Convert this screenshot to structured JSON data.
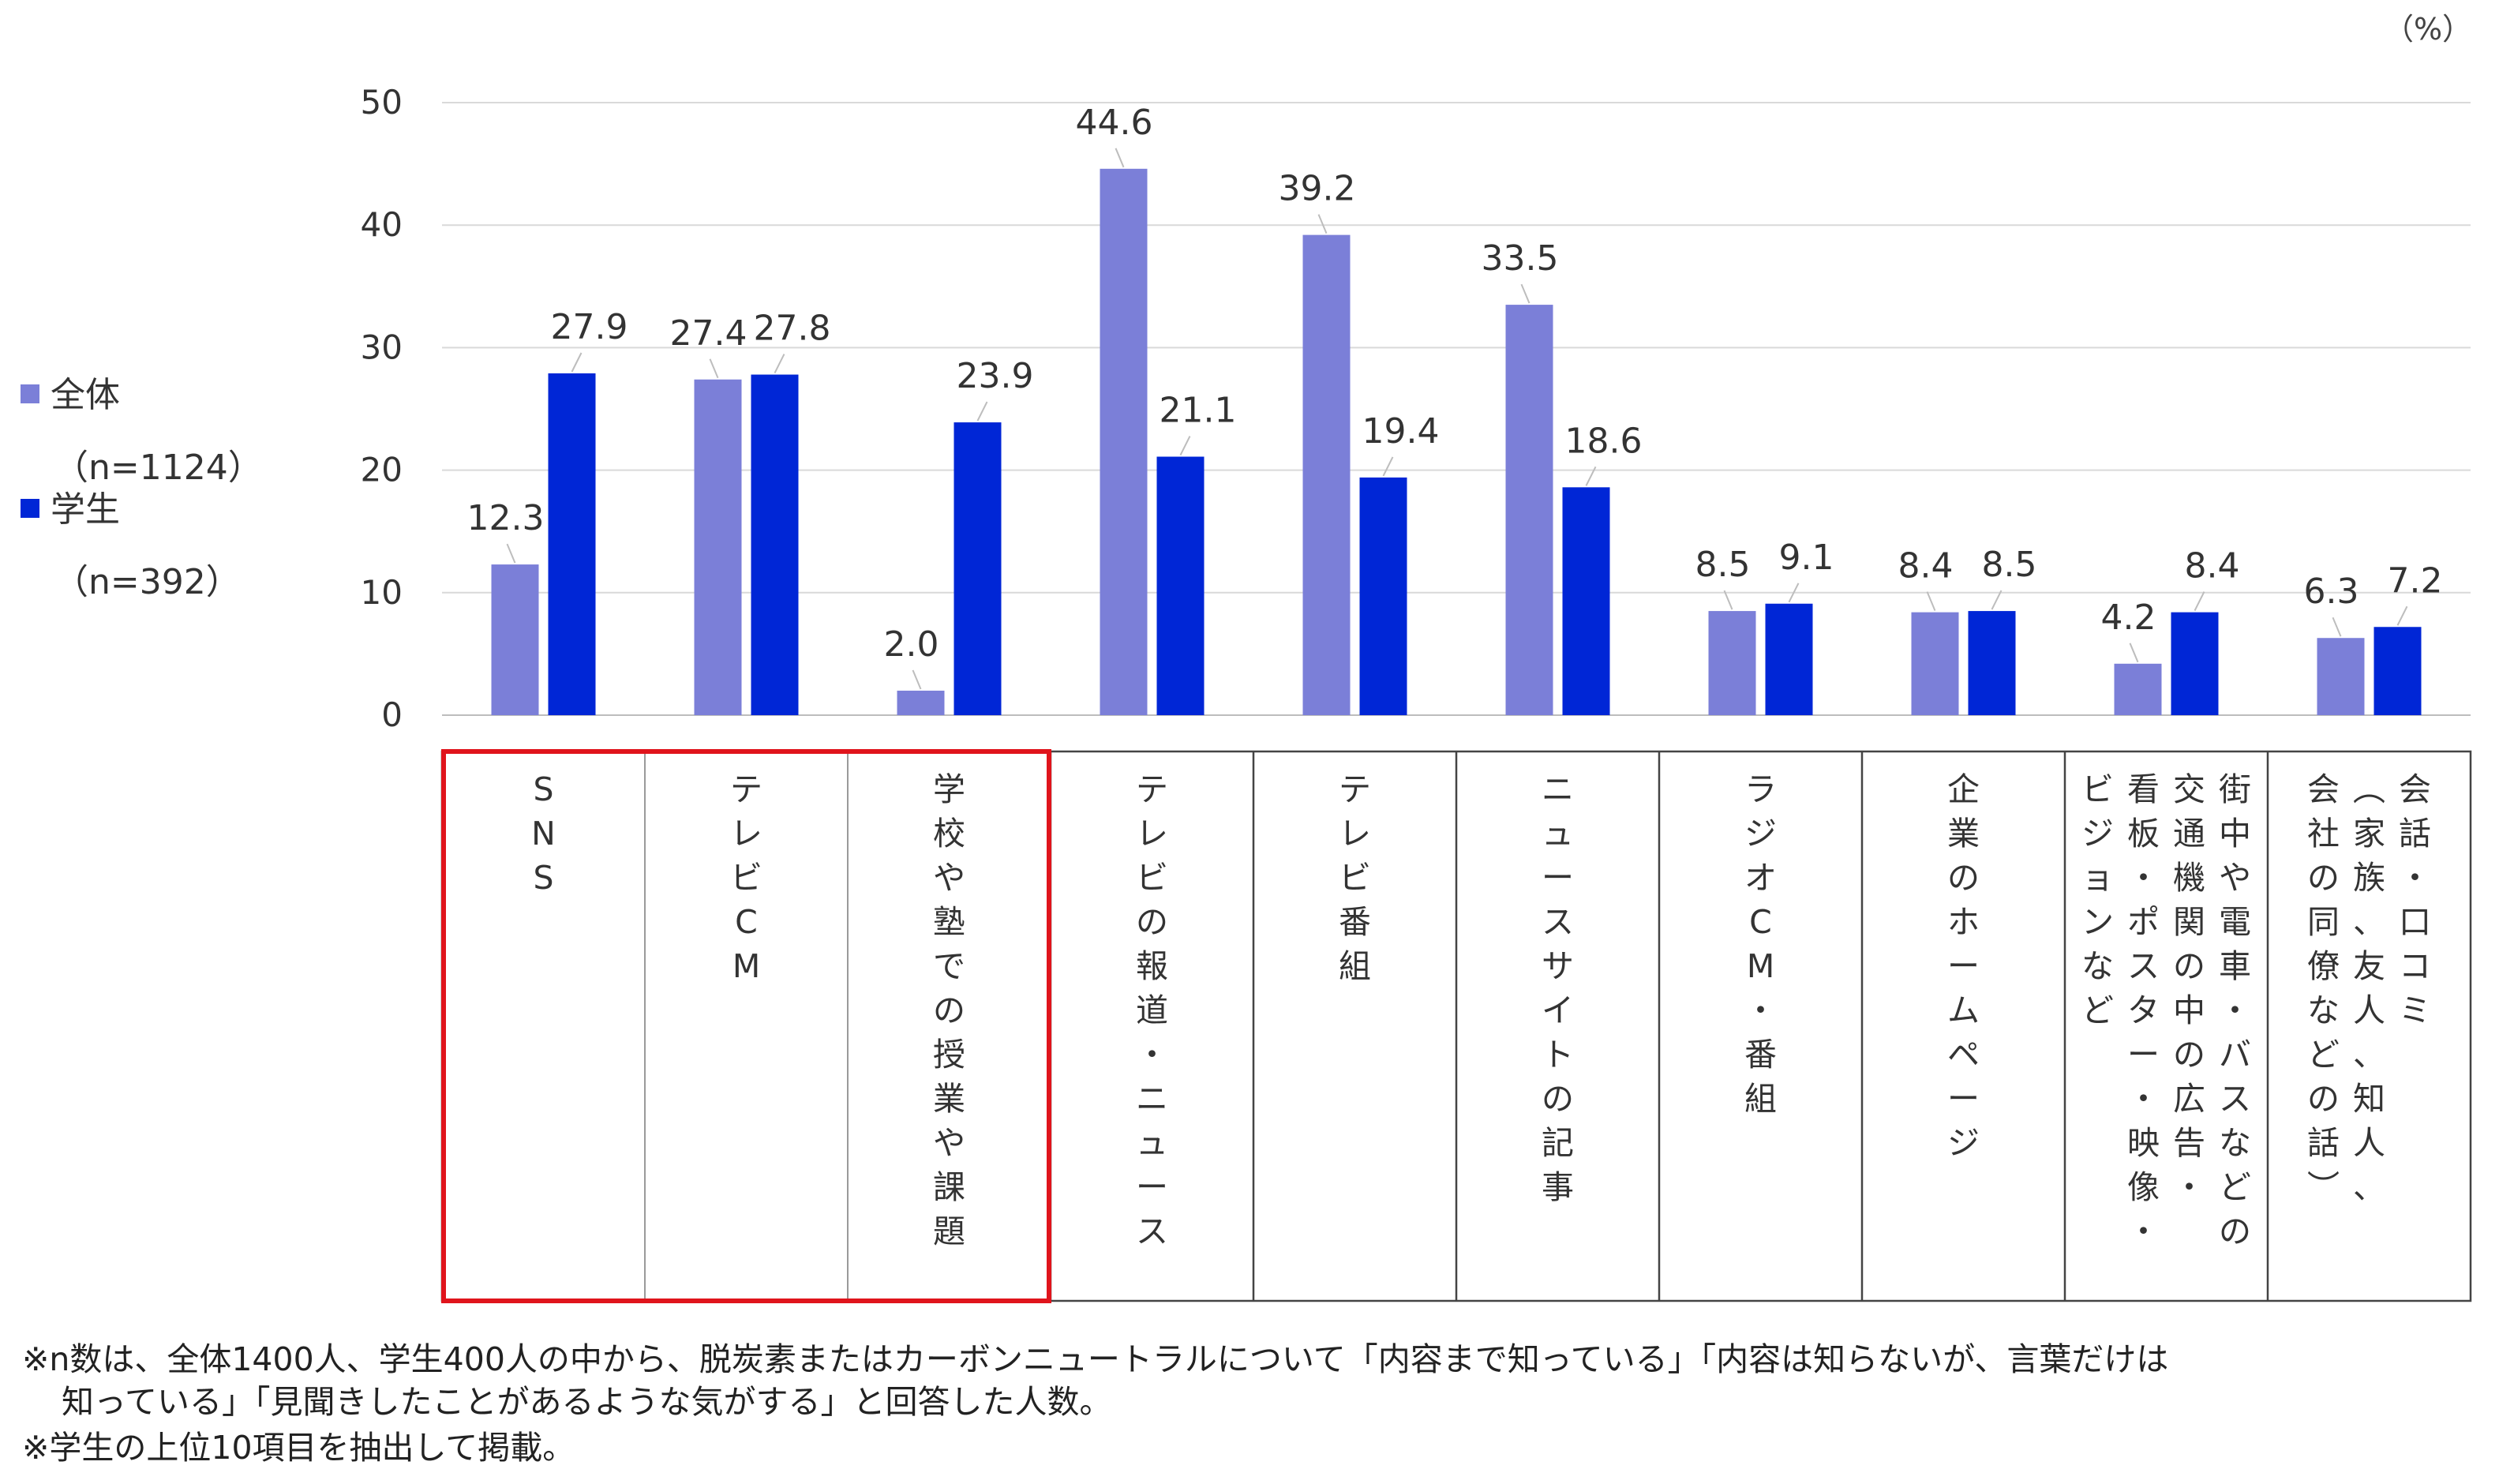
{
  "chart_data": {
    "type": "bar",
    "unit_label": "（%）",
    "ylim": [
      0,
      50
    ],
    "yticks": [
      0,
      10,
      20,
      30,
      40,
      50
    ],
    "grid": true,
    "legend_position": "left",
    "categories": [
      "SNS",
      "テレビCM",
      "学校や塾での授業や課題",
      "テレビの報道・ニュース",
      "テレビ番組",
      "ニュースサイトの記事",
      "ラジオCM・番組",
      "企業のホームページ",
      "街中や電車・バスなどの交通機関の中の広告・看板・ポスター・映像・ビジョンなど",
      "会話・口コミ（家族、友人、知人、会社の同僚などの話）"
    ],
    "category_columns": [
      [
        "SNS"
      ],
      [
        "テレビCM"
      ],
      [
        "学校や塾での授業や課題"
      ],
      [
        "テレビの報道・ニュース"
      ],
      [
        "テレビ番組"
      ],
      [
        "ニュースサイトの記事"
      ],
      [
        "ラジオCM・番組"
      ],
      [
        "企業のホームページ"
      ],
      [
        "街中や電車・バスなどの",
        "交通機関の中の広告・",
        "看板・ポスター・映像・",
        "ビジョンなど"
      ],
      [
        "会話・口コミ",
        "︵家族、友人、知人、",
        "会社の同僚などの話︶"
      ]
    ],
    "series": [
      {
        "name": "全体",
        "sample": "（n=1124）",
        "color": "#7b7fd8",
        "values": [
          12.3,
          27.4,
          2.0,
          44.6,
          39.2,
          33.5,
          8.5,
          8.4,
          4.2,
          6.3
        ],
        "labels": [
          "12.3",
          "27.4",
          "2.0",
          "44.6",
          "39.2",
          "33.5",
          "8.5",
          "8.4",
          "4.2",
          "6.3"
        ]
      },
      {
        "name": "学生",
        "sample": "（n=392）",
        "color": "#0026d6",
        "values": [
          27.9,
          27.8,
          23.9,
          21.1,
          19.4,
          18.6,
          9.1,
          8.5,
          8.4,
          7.2
        ],
        "labels": [
          "27.9",
          "27.8",
          "23.9",
          "21.1",
          "19.4",
          "18.6",
          "9.1",
          "8.5",
          "8.4",
          "7.2"
        ]
      }
    ],
    "highlight": {
      "from": 0,
      "to": 2,
      "color": "#e0141c"
    },
    "notes": [
      "※n数は、全体1400人、学生400人の中から、脱炭素またはカーボンニュートラルについて「内容まで知っている」「内容は知らないが、言葉だけは",
      "知っている」「見聞きしたことがあるような気がする」と回答した人数。",
      "※学生の上位10項目を抽出して掲載。"
    ]
  }
}
